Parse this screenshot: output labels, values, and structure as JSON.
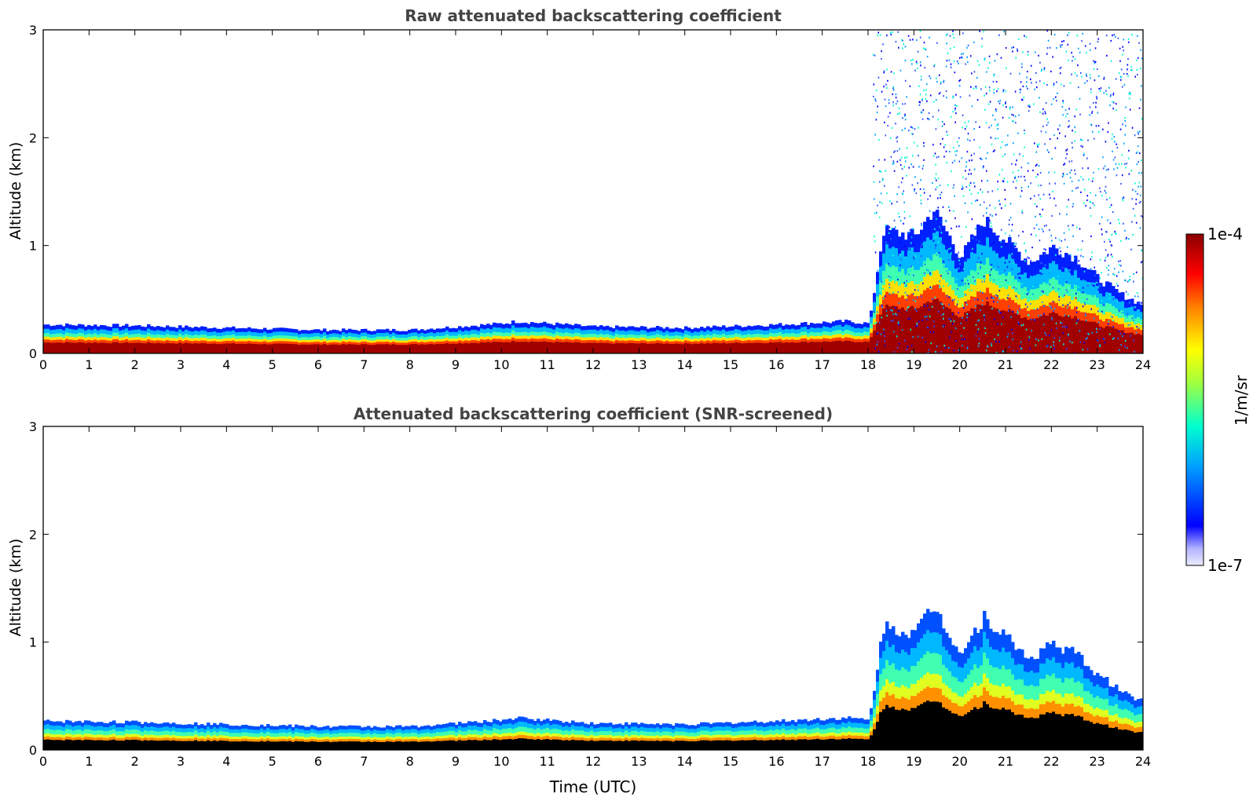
{
  "chart_data": [
    {
      "type": "heatmap",
      "title": "Raw attenuated backscattering coefficient",
      "xlabel": "",
      "ylabel": "Altitude (km)",
      "xlim": [
        0,
        24
      ],
      "ylim": [
        0,
        3
      ],
      "xticks": [
        0,
        1,
        2,
        3,
        4,
        5,
        6,
        7,
        8,
        9,
        10,
        11,
        12,
        13,
        14,
        15,
        16,
        17,
        18,
        19,
        20,
        21,
        22,
        23,
        24
      ],
      "yticks": [
        0,
        1,
        2,
        3
      ],
      "x": [
        0,
        2,
        4,
        6,
        8,
        10,
        10.3,
        11,
        12,
        14,
        16,
        17.5,
        18,
        18.3,
        19,
        19.4,
        20,
        20.5,
        21,
        21.5,
        22,
        22.5,
        23,
        23.5,
        24
      ],
      "layer_top_km": [
        0.27,
        0.26,
        0.24,
        0.22,
        0.22,
        0.28,
        0.3,
        0.28,
        0.25,
        0.24,
        0.27,
        0.3,
        0.28,
        1.15,
        1.1,
        1.35,
        0.9,
        1.25,
        1.05,
        0.85,
        1.0,
        0.9,
        0.7,
        0.55,
        0.45
      ],
      "noise_region": {
        "x_start": 18.1,
        "x_end": 24,
        "top_km": 3
      },
      "colorbar": {
        "min_label": "1e-7",
        "max_label": "1e-4",
        "units": "1/m/sr",
        "scale": "log"
      }
    },
    {
      "type": "heatmap",
      "title": "Attenuated backscattering coefficient (SNR-screened)",
      "xlabel": "Time (UTC)",
      "ylabel": "Altitude (km)",
      "xlim": [
        0,
        24
      ],
      "ylim": [
        0,
        3
      ],
      "xticks": [
        0,
        1,
        2,
        3,
        4,
        5,
        6,
        7,
        8,
        9,
        10,
        11,
        12,
        13,
        14,
        15,
        16,
        17,
        18,
        19,
        20,
        21,
        22,
        23,
        24
      ],
      "yticks": [
        0,
        1,
        2,
        3
      ],
      "x": [
        0,
        2,
        4,
        6,
        8,
        10,
        10.3,
        11,
        12,
        14,
        16,
        17.5,
        18,
        18.3,
        19,
        19.4,
        20,
        20.5,
        21,
        21.5,
        22,
        22.5,
        23,
        23.5,
        24
      ],
      "layer_top_km": [
        0.27,
        0.26,
        0.24,
        0.22,
        0.22,
        0.28,
        0.3,
        0.28,
        0.25,
        0.24,
        0.27,
        0.3,
        0.28,
        1.15,
        1.1,
        1.35,
        0.9,
        1.25,
        1.05,
        0.85,
        1.0,
        0.9,
        0.7,
        0.55,
        0.45
      ],
      "saturated_color": "#000000"
    }
  ],
  "colors": {
    "colormap": [
      "#ececff",
      "#b4b4ff",
      "#0000ff",
      "#00a0ff",
      "#00ffd0",
      "#a0ff40",
      "#ffff00",
      "#ff8000",
      "#ff0000",
      "#8b0000"
    ],
    "axis": "#000000",
    "title": "#444444"
  }
}
